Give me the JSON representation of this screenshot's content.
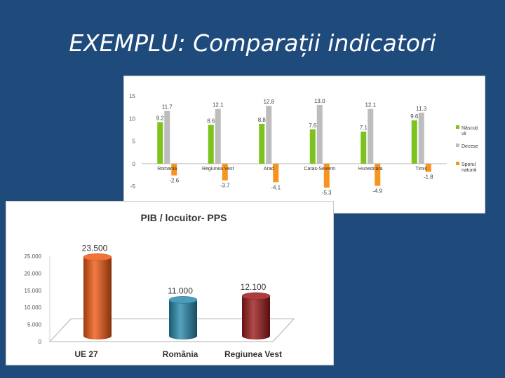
{
  "slide": {
    "title": "EXEMPLU: Comparații indicatori"
  },
  "colors": {
    "background": "#1f4a7c",
    "births": "#7dc21e",
    "deaths": "#bdbdbd",
    "natural_growth": "#f7941d",
    "ue27": "#f05a14",
    "romania": "#2a8bb0",
    "vest": "#9e1c1c"
  },
  "chart_data": [
    {
      "type": "bar",
      "title": "",
      "xlabel": "",
      "ylabel": "",
      "ylim": [
        -7,
        15
      ],
      "yticks": [
        -5,
        0,
        5,
        10,
        15
      ],
      "grid": false,
      "legend_position": "right",
      "categories": [
        "Romania",
        "Regiunea Vest",
        "Arad",
        "Caras-Severin",
        "Hunedoara",
        "Timiș"
      ],
      "series": [
        {
          "name": "Născuți vii",
          "color": "#7dc21e",
          "values": [
            9.2,
            8.6,
            8.8,
            7.6,
            7.1,
            9.6
          ]
        },
        {
          "name": "Decese",
          "color": "#bdbdbd",
          "values": [
            11.7,
            12.1,
            12.8,
            13.0,
            12.1,
            11.3
          ]
        },
        {
          "name": "Sporul natural",
          "color": "#f7941d",
          "values": [
            -2.6,
            -3.7,
            -4.1,
            -5.3,
            -4.9,
            -1.8
          ]
        }
      ],
      "value_labels": [
        [
          "9.2",
          "8.6",
          "8.8",
          "7.6",
          "7.1",
          "9.6"
        ],
        [
          "11.7",
          "12.1",
          "12.8",
          "13.0",
          "12.1",
          "11.3"
        ],
        [
          "-2.6",
          "-3.7",
          "-4.1",
          "-5.3",
          "-4.9",
          "-1.8"
        ]
      ],
      "legend_labels": [
        [
          "Născuți",
          "vii"
        ],
        [
          "Decese"
        ],
        [
          "Sporul",
          "natural"
        ]
      ]
    },
    {
      "type": "bar",
      "title": "PIB / locuitor- PPS",
      "xlabel": "",
      "ylabel": "",
      "ylim": [
        0,
        25000
      ],
      "ytick_values": [
        0,
        5000,
        10000,
        15000,
        20000,
        25000
      ],
      "ytick_labels": [
        "0",
        "5.000",
        "10.000",
        "15.000",
        "20.000",
        "25.000"
      ],
      "grid": false,
      "categories": [
        "UE 27",
        "România",
        "Regiunea Vest"
      ],
      "values": [
        23500,
        11000,
        12100
      ],
      "value_labels": [
        "23.500",
        "11.000",
        "12.100"
      ],
      "colors": [
        "#f05a14",
        "#2a8bb0",
        "#9e1c1c"
      ]
    }
  ]
}
